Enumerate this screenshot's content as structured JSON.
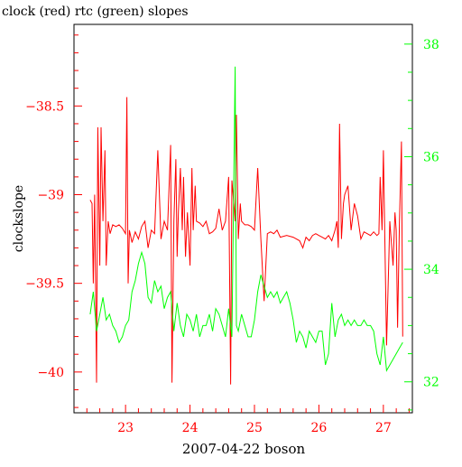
{
  "chart_data": {
    "type": "line",
    "title": "clock (red) rtc (green) slopes",
    "xlabel": "2007-04-22 boson",
    "ylabel": "clockslope",
    "colors": {
      "clock": "#ff0000",
      "rtc": "#00ff00",
      "axis": "#000000",
      "background": "#ffffff"
    },
    "x_ticks": [
      {
        "value": 23,
        "label": "23"
      },
      {
        "value": 24,
        "label": "24"
      },
      {
        "value": 25,
        "label": "25"
      },
      {
        "value": 26,
        "label": "26"
      },
      {
        "value": 27,
        "label": "27"
      }
    ],
    "y_left_ticks": [
      {
        "value": -38.5,
        "label": "−38.5"
      },
      {
        "value": -39,
        "label": "−39"
      },
      {
        "value": -39.5,
        "label": "−39.5"
      },
      {
        "value": -40,
        "label": "−40"
      }
    ],
    "y_right_ticks": [
      {
        "value": 32,
        "label": "32"
      },
      {
        "value": 34,
        "label": "34"
      },
      {
        "value": 36,
        "label": "36"
      },
      {
        "value": 38,
        "label": "38"
      }
    ],
    "xlim": [
      22.2,
      27.45
    ],
    "ylim_left": [
      -40.23,
      -38.04
    ],
    "ylim_right": [
      31.45,
      38.35
    ],
    "grid": false,
    "legend": "none",
    "series": [
      {
        "name": "clock",
        "axis": "left",
        "x": [
          22.45,
          22.48,
          22.5,
          22.52,
          22.55,
          22.57,
          22.6,
          22.62,
          22.65,
          22.68,
          22.7,
          22.73,
          22.76,
          22.8,
          22.85,
          22.9,
          22.95,
          23.0,
          23.02,
          23.04,
          23.06,
          23.1,
          23.15,
          23.2,
          23.25,
          23.3,
          23.35,
          23.4,
          23.45,
          23.5,
          23.55,
          23.6,
          23.65,
          23.7,
          23.72,
          23.75,
          23.78,
          23.8,
          23.82,
          23.85,
          23.88,
          23.9,
          23.93,
          23.96,
          24.0,
          24.03,
          24.05,
          24.08,
          24.1,
          24.15,
          24.2,
          24.25,
          24.3,
          24.35,
          24.4,
          24.45,
          24.5,
          24.55,
          24.6,
          24.63,
          24.65,
          24.68,
          24.7,
          24.72,
          24.75,
          24.78,
          24.8,
          24.85,
          24.9,
          24.95,
          25.0,
          25.05,
          25.1,
          25.15,
          25.2,
          25.25,
          25.3,
          25.35,
          25.4,
          25.5,
          25.6,
          25.7,
          25.75,
          25.8,
          25.85,
          25.9,
          25.95,
          26.0,
          26.05,
          26.1,
          26.15,
          26.2,
          26.25,
          26.28,
          26.3,
          26.32,
          26.35,
          26.38,
          26.4,
          26.45,
          26.5,
          26.55,
          26.6,
          26.65,
          26.7,
          26.75,
          26.8,
          26.85,
          26.9,
          26.93,
          26.95,
          26.98,
          27.0,
          27.05,
          27.1,
          27.15,
          27.18,
          27.2,
          27.22,
          27.25,
          27.28,
          27.3
        ],
        "y": [
          -39.03,
          -39.05,
          -39.5,
          -39.0,
          -40.06,
          -38.62,
          -39.4,
          -38.62,
          -39.15,
          -38.75,
          -39.4,
          -39.15,
          -39.22,
          -39.17,
          -39.18,
          -39.17,
          -39.19,
          -39.22,
          -38.45,
          -39.5,
          -39.2,
          -39.27,
          -39.21,
          -39.25,
          -39.18,
          -39.15,
          -39.3,
          -39.2,
          -39.22,
          -38.75,
          -39.25,
          -39.15,
          -39.2,
          -38.72,
          -40.06,
          -39.15,
          -38.8,
          -39.35,
          -39.1,
          -38.85,
          -39.2,
          -38.9,
          -39.35,
          -39.1,
          -39.4,
          -38.85,
          -39.2,
          -38.95,
          -39.15,
          -39.16,
          -39.18,
          -39.15,
          -39.22,
          -39.21,
          -39.19,
          -39.08,
          -39.2,
          -39.15,
          -38.9,
          -40.07,
          -38.92,
          -39.05,
          -39.15,
          -38.55,
          -39.25,
          -39.05,
          -39.15,
          -39.17,
          -39.17,
          -39.18,
          -39.2,
          -38.85,
          -39.25,
          -39.6,
          -39.22,
          -39.21,
          -39.22,
          -39.2,
          -39.24,
          -39.23,
          -39.24,
          -39.26,
          -39.3,
          -39.24,
          -39.26,
          -39.23,
          -39.22,
          -39.23,
          -39.24,
          -39.25,
          -39.23,
          -39.26,
          -39.2,
          -39.15,
          -39.3,
          -38.6,
          -39.25,
          -39.05,
          -39.0,
          -38.95,
          -39.2,
          -39.05,
          -39.12,
          -39.25,
          -39.21,
          -39.22,
          -39.23,
          -39.21,
          -39.23,
          -39.22,
          -38.9,
          -39.2,
          -38.75,
          -39.85,
          -39.15,
          -39.4,
          -39.1,
          -39.2,
          -39.75,
          -39.15,
          -38.7,
          -39.8
        ],
        "color": "#ff0000"
      },
      {
        "name": "rtc",
        "axis": "right",
        "x": [
          22.45,
          22.5,
          22.55,
          22.6,
          22.65,
          22.7,
          22.75,
          22.8,
          22.85,
          22.9,
          22.95,
          23.0,
          23.05,
          23.1,
          23.15,
          23.2,
          23.25,
          23.3,
          23.35,
          23.4,
          23.45,
          23.5,
          23.55,
          23.6,
          23.65,
          23.7,
          23.75,
          23.8,
          23.85,
          23.9,
          23.95,
          24.0,
          24.05,
          24.1,
          24.15,
          24.2,
          24.25,
          24.3,
          24.35,
          24.4,
          24.45,
          24.5,
          24.55,
          24.6,
          24.65,
          24.7,
          24.72,
          24.75,
          24.8,
          24.85,
          24.9,
          24.95,
          25.0,
          25.05,
          25.1,
          25.15,
          25.2,
          25.25,
          25.3,
          25.35,
          25.4,
          25.45,
          25.5,
          25.55,
          25.6,
          25.65,
          25.7,
          25.75,
          25.8,
          25.85,
          25.9,
          25.95,
          26.0,
          26.05,
          26.1,
          26.15,
          26.2,
          26.25,
          26.3,
          26.35,
          26.4,
          26.45,
          26.5,
          26.55,
          26.6,
          26.65,
          26.7,
          26.75,
          26.8,
          26.85,
          26.9,
          26.95,
          27.0,
          27.05,
          27.1,
          27.15,
          27.2,
          27.25,
          27.3
        ],
        "y": [
          33.2,
          33.6,
          32.9,
          33.2,
          33.5,
          33.1,
          33.2,
          33.0,
          32.9,
          32.7,
          32.8,
          33.0,
          33.1,
          33.6,
          33.8,
          34.1,
          34.3,
          34.1,
          33.5,
          33.4,
          33.8,
          33.6,
          33.7,
          33.3,
          33.5,
          33.6,
          32.9,
          33.4,
          33.0,
          32.8,
          33.2,
          33.1,
          32.9,
          33.2,
          32.8,
          33.0,
          33.0,
          33.2,
          32.9,
          33.3,
          33.2,
          33.0,
          32.8,
          33.3,
          32.8,
          37.6,
          33.0,
          32.9,
          33.2,
          33.0,
          32.8,
          32.8,
          33.1,
          33.6,
          33.9,
          33.7,
          33.5,
          33.6,
          33.5,
          33.6,
          33.4,
          33.5,
          33.6,
          33.4,
          33.1,
          32.7,
          32.9,
          32.8,
          32.6,
          32.9,
          32.8,
          32.7,
          32.9,
          32.9,
          32.3,
          32.5,
          33.4,
          32.8,
          33.1,
          33.2,
          33.0,
          33.1,
          33.0,
          33.1,
          33.0,
          33.0,
          33.1,
          33.0,
          33.0,
          32.9,
          32.5,
          32.3,
          32.8,
          32.2,
          32.3,
          32.4,
          32.5,
          32.6,
          32.7
        ],
        "color": "#00ff00"
      }
    ]
  }
}
